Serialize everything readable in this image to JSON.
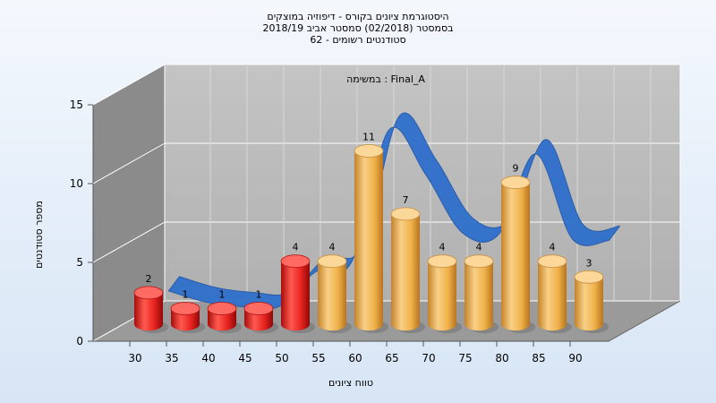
{
  "chart_data": {
    "type": "bar",
    "title_lines": [
      "היסטוגרמת ציונים בקורס - דיפוזיה במוצקים",
      "בסמסטר  (02/2018)  סמסטר אביב 2018/19",
      "סטודנטים רשומים - 62"
    ],
    "subtitle": "במשימה : Final_A",
    "xlabel": "טווח ציונים",
    "ylabel": "מספר סטודנטים",
    "categories": [
      "30",
      "35",
      "40",
      "45",
      "50",
      "55",
      "60",
      "65",
      "70",
      "75",
      "80",
      "85",
      "90"
    ],
    "values": [
      2,
      1,
      1,
      1,
      4,
      4,
      11,
      7,
      4,
      4,
      9,
      4,
      3
    ],
    "bar_colors": [
      "#e8231f",
      "#e8231f",
      "#e8231f",
      "#e8231f",
      "#e8231f",
      "#f0b24a",
      "#f0b24a",
      "#f0b24a",
      "#f0b24a",
      "#f0b24a",
      "#f0b24a",
      "#f0b24a",
      "#f0b24a"
    ],
    "y_ticks": [
      "0",
      "5",
      "10",
      "15"
    ],
    "ylim": [
      0,
      15
    ],
    "curve": {
      "color": "#2f6fcc",
      "values": [
        1.6,
        0.9,
        0.6,
        0.6,
        2.8,
        3.5,
        11.8,
        9.0,
        5.3,
        5.2,
        10.3,
        4.9,
        4.8
      ]
    },
    "grid": true
  }
}
